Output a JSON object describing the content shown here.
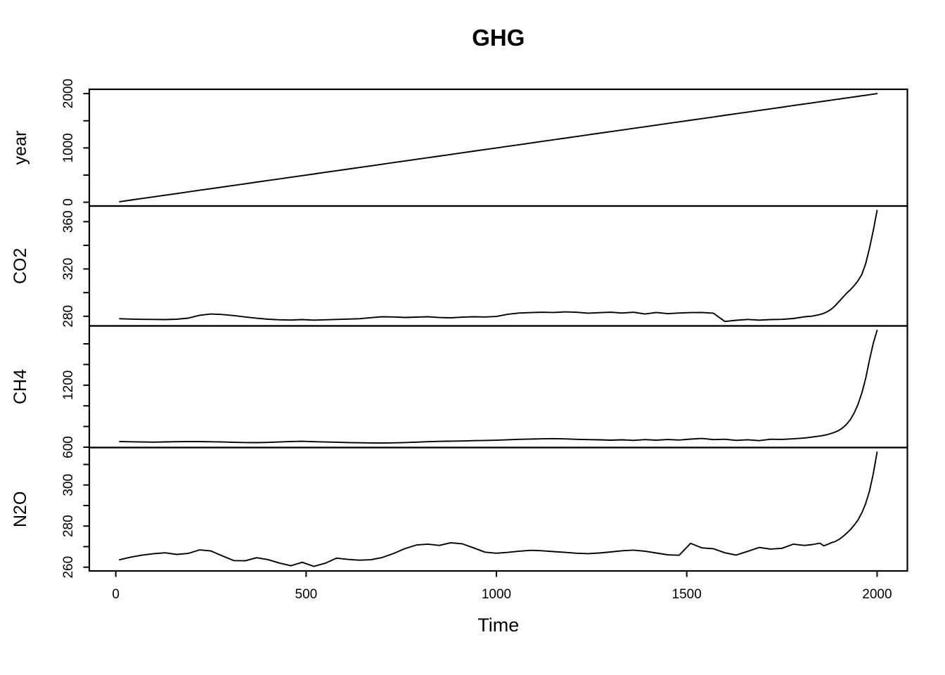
{
  "figure": {
    "title": "GHG",
    "xlabel": "Time",
    "background_color": "#ffffff",
    "line_color": "#000000"
  },
  "chart_data": {
    "type": "line",
    "title": "GHG",
    "xlabel": "Time",
    "layout": {
      "grid": false,
      "frame": true,
      "stacked_panels": true,
      "y_tick_label_rotation": "vertical",
      "x_range_shown": [
        0,
        2000
      ]
    },
    "x_ticks": [
      0,
      500,
      1000,
      1500,
      2000
    ],
    "x": [
      10,
      40,
      70,
      100,
      130,
      160,
      190,
      220,
      250,
      280,
      310,
      340,
      370,
      400,
      430,
      460,
      490,
      520,
      550,
      580,
      610,
      640,
      670,
      700,
      730,
      760,
      790,
      820,
      850,
      880,
      910,
      940,
      970,
      1000,
      1030,
      1060,
      1090,
      1120,
      1150,
      1180,
      1210,
      1240,
      1270,
      1300,
      1330,
      1360,
      1390,
      1420,
      1450,
      1480,
      1510,
      1540,
      1570,
      1600,
      1630,
      1660,
      1690,
      1720,
      1750,
      1780,
      1810,
      1830,
      1850,
      1860,
      1870,
      1880,
      1890,
      1900,
      1910,
      1920,
      1930,
      1940,
      1950,
      1960,
      1970,
      1980,
      1990,
      2000
    ],
    "panels": [
      {
        "name": "year",
        "ylabel": "year",
        "ticks": [
          0,
          500,
          1000,
          1500,
          2000
        ],
        "labeled_ticks": [
          0,
          1000,
          2000
        ],
        "values": [
          10,
          40,
          70,
          100,
          130,
          160,
          190,
          220,
          250,
          280,
          310,
          340,
          370,
          400,
          430,
          460,
          490,
          520,
          550,
          580,
          610,
          640,
          670,
          700,
          730,
          760,
          790,
          820,
          850,
          880,
          910,
          940,
          970,
          1000,
          1030,
          1060,
          1090,
          1120,
          1150,
          1180,
          1210,
          1240,
          1270,
          1300,
          1330,
          1360,
          1390,
          1420,
          1450,
          1480,
          1510,
          1540,
          1570,
          1600,
          1630,
          1660,
          1690,
          1720,
          1750,
          1780,
          1810,
          1830,
          1850,
          1860,
          1870,
          1880,
          1890,
          1900,
          1910,
          1920,
          1930,
          1940,
          1950,
          1960,
          1970,
          1980,
          1990,
          2000
        ]
      },
      {
        "name": "co2",
        "ylabel": "CO2",
        "ticks": [
          280,
          300,
          320,
          340,
          360
        ],
        "labeled_ticks": [
          280,
          320,
          360
        ],
        "values": [
          277.9,
          277.6,
          277.4,
          277.3,
          277.2,
          277.5,
          278.4,
          280.8,
          281.9,
          281.5,
          280.6,
          279.4,
          278.3,
          277.5,
          277.0,
          276.8,
          277.2,
          276.7,
          277.0,
          277.3,
          277.6,
          277.9,
          278.8,
          279.6,
          279.4,
          279.0,
          279.3,
          279.6,
          278.9,
          278.7,
          279.2,
          279.6,
          279.4,
          279.8,
          281.7,
          282.7,
          283.1,
          283.4,
          283.2,
          283.7,
          283.4,
          282.6,
          283.0,
          283.4,
          282.7,
          283.4,
          281.9,
          283.2,
          282.2,
          282.7,
          283.1,
          283.2,
          282.6,
          275.6,
          276.6,
          277.3,
          276.7,
          277.2,
          277.4,
          278.1,
          279.6,
          280.1,
          281.5,
          282.5,
          284.0,
          286.0,
          289.0,
          292.5,
          296.0,
          299.5,
          302.5,
          306.0,
          310.0,
          315.5,
          324.5,
          337.5,
          352.5,
          369.5
        ]
      },
      {
        "name": "ch4",
        "ylabel": "CH4",
        "ticks": [
          600,
          800,
          1000,
          1200,
          1400,
          1600
        ],
        "labeled_ticks": [
          600,
          1200
        ],
        "values": [
          655,
          652,
          650,
          649,
          651,
          653,
          655,
          654,
          652,
          650,
          647,
          645,
          644,
          646,
          650,
          655,
          657,
          653,
          650,
          648,
          645,
          643,
          641,
          640,
          642,
          645,
          649,
          653,
          656,
          658,
          660,
          663,
          665,
          667,
          672,
          676,
          679,
          681,
          683,
          680,
          676,
          673,
          671,
          668,
          671,
          666,
          673,
          668,
          674,
          669,
          678,
          684,
          673,
          677,
          666,
          672,
          663,
          677,
          675,
          681,
          689,
          698,
          708,
          714,
          722,
          733,
          746,
          763,
          788,
          822,
          868,
          932,
          1015,
          1125,
          1265,
          1445,
          1605,
          1730
        ]
      },
      {
        "name": "n2o",
        "ylabel": "N2O",
        "ticks": [
          260,
          270,
          280,
          290,
          300,
          310
        ],
        "labeled_ticks": [
          260,
          280,
          300
        ],
        "values": [
          263.6,
          264.9,
          265.9,
          266.6,
          267.0,
          266.2,
          266.7,
          268.4,
          267.9,
          265.5,
          263.2,
          263.1,
          264.6,
          263.7,
          262.0,
          260.7,
          262.4,
          260.4,
          261.9,
          264.4,
          263.8,
          263.4,
          263.6,
          264.7,
          266.7,
          269.1,
          270.8,
          271.2,
          270.6,
          271.9,
          271.4,
          269.4,
          267.3,
          266.8,
          267.2,
          267.8,
          268.2,
          268.0,
          267.6,
          267.2,
          266.8,
          266.6,
          266.9,
          267.4,
          268.0,
          268.3,
          267.8,
          266.9,
          266.0,
          265.8,
          271.6,
          269.4,
          269.0,
          267.0,
          265.9,
          267.7,
          269.6,
          268.8,
          269.2,
          271.2,
          270.6,
          271.0,
          271.7,
          270.4,
          271.1,
          271.9,
          272.5,
          273.5,
          274.9,
          276.5,
          278.3,
          280.5,
          283.0,
          286.5,
          291.0,
          297.0,
          305.5,
          316.0
        ]
      }
    ]
  }
}
